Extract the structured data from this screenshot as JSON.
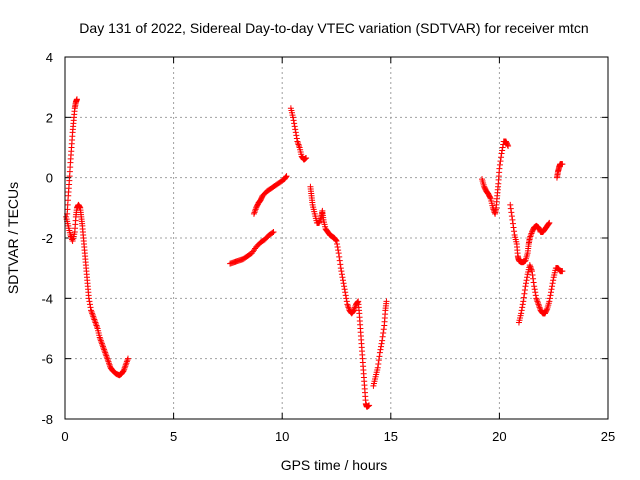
{
  "chart_data": {
    "type": "scatter",
    "title": "Day 131 of 2022, Sidereal Day-to-day VTEC variation (SDTVAR) for receiver mtcn",
    "xlabel": "GPS time / hours",
    "ylabel": "SDTVAR / TECUs",
    "xlim": [
      0,
      25
    ],
    "ylim": [
      -8,
      4
    ],
    "xticks": [
      0,
      5,
      10,
      15,
      20,
      25
    ],
    "yticks": [
      -8,
      -6,
      -4,
      -2,
      0,
      2,
      4
    ],
    "grid": true,
    "marker": "+",
    "color": "#ff0000",
    "series": [
      {
        "segments": [
          [
            [
              0.1,
              -1.2
            ],
            [
              0.15,
              -0.6
            ],
            [
              0.2,
              -0.1
            ],
            [
              0.25,
              0.5
            ],
            [
              0.3,
              1.0
            ],
            [
              0.35,
              1.5
            ],
            [
              0.4,
              1.9
            ],
            [
              0.45,
              2.3
            ],
            [
              0.5,
              2.5
            ],
            [
              0.55,
              2.6
            ]
          ],
          [
            [
              0.05,
              -1.3
            ],
            [
              0.15,
              -1.6
            ],
            [
              0.25,
              -1.9
            ],
            [
              0.35,
              -2.1
            ],
            [
              0.45,
              -1.8
            ],
            [
              0.5,
              -1.3
            ],
            [
              0.55,
              -1.0
            ],
            [
              0.62,
              -0.9
            ],
            [
              0.7,
              -1.0
            ],
            [
              0.75,
              -1.3
            ],
            [
              0.8,
              -1.6
            ],
            [
              0.85,
              -2.0
            ],
            [
              0.9,
              -2.4
            ],
            [
              0.95,
              -2.8
            ],
            [
              1.0,
              -3.2
            ],
            [
              1.05,
              -3.6
            ],
            [
              1.1,
              -4.0
            ],
            [
              1.2,
              -4.4
            ],
            [
              1.3,
              -4.6
            ],
            [
              1.4,
              -4.8
            ],
            [
              1.5,
              -5.0
            ],
            [
              1.6,
              -5.3
            ],
            [
              1.7,
              -5.5
            ],
            [
              1.8,
              -5.7
            ],
            [
              1.9,
              -5.9
            ],
            [
              2.0,
              -6.1
            ],
            [
              2.1,
              -6.3
            ],
            [
              2.2,
              -6.4
            ],
            [
              2.35,
              -6.5
            ],
            [
              2.5,
              -6.55
            ],
            [
              2.6,
              -6.5
            ],
            [
              2.7,
              -6.4
            ],
            [
              2.8,
              -6.2
            ],
            [
              2.9,
              -6.0
            ]
          ],
          [
            [
              7.6,
              -2.85
            ],
            [
              7.8,
              -2.8
            ],
            [
              8.0,
              -2.75
            ],
            [
              8.2,
              -2.7
            ],
            [
              8.4,
              -2.6
            ],
            [
              8.6,
              -2.5
            ],
            [
              8.8,
              -2.3
            ],
            [
              9.0,
              -2.15
            ],
            [
              9.2,
              -2.05
            ],
            [
              9.4,
              -1.9
            ],
            [
              9.6,
              -1.8
            ]
          ],
          [
            [
              8.7,
              -1.2
            ],
            [
              8.8,
              -1.0
            ],
            [
              8.9,
              -0.85
            ],
            [
              9.0,
              -0.75
            ],
            [
              9.1,
              -0.6
            ],
            [
              9.3,
              -0.45
            ],
            [
              9.5,
              -0.35
            ],
            [
              9.7,
              -0.25
            ],
            [
              9.9,
              -0.15
            ],
            [
              10.1,
              -0.05
            ],
            [
              10.2,
              0.05
            ]
          ],
          [
            [
              10.4,
              2.3
            ],
            [
              10.5,
              2.0
            ],
            [
              10.6,
              1.6
            ],
            [
              10.7,
              1.2
            ],
            [
              10.8,
              1.0
            ],
            [
              10.9,
              0.7
            ],
            [
              11.0,
              0.6
            ],
            [
              11.1,
              0.65
            ]
          ],
          [
            [
              11.3,
              -0.3
            ],
            [
              11.35,
              -0.6
            ],
            [
              11.4,
              -0.9
            ],
            [
              11.5,
              -1.2
            ],
            [
              11.6,
              -1.5
            ],
            [
              11.7,
              -1.5
            ],
            [
              11.8,
              -1.3
            ],
            [
              11.85,
              -1.1
            ],
            [
              11.9,
              -1.4
            ],
            [
              12.0,
              -1.7
            ],
            [
              12.1,
              -1.8
            ],
            [
              12.2,
              -1.9
            ],
            [
              12.3,
              -1.95
            ],
            [
              12.4,
              -2.0
            ],
            [
              12.5,
              -2.1
            ],
            [
              12.6,
              -2.5
            ],
            [
              12.7,
              -3.0
            ],
            [
              12.8,
              -3.4
            ],
            [
              12.9,
              -3.8
            ],
            [
              13.0,
              -4.2
            ],
            [
              13.1,
              -4.4
            ],
            [
              13.2,
              -4.5
            ],
            [
              13.3,
              -4.4
            ],
            [
              13.4,
              -4.2
            ],
            [
              13.5,
              -4.1
            ],
            [
              13.55,
              -4.5
            ],
            [
              13.6,
              -5.0
            ],
            [
              13.65,
              -5.5
            ],
            [
              13.7,
              -6.0
            ],
            [
              13.75,
              -6.5
            ],
            [
              13.8,
              -7.0
            ],
            [
              13.85,
              -7.5
            ],
            [
              13.9,
              -7.6
            ],
            [
              14.0,
              -7.55
            ]
          ],
          [
            [
              14.2,
              -6.9
            ],
            [
              14.3,
              -6.6
            ],
            [
              14.4,
              -6.3
            ],
            [
              14.5,
              -5.8
            ],
            [
              14.6,
              -5.4
            ],
            [
              14.7,
              -4.9
            ],
            [
              14.75,
              -4.4
            ],
            [
              14.8,
              -4.1
            ]
          ],
          [
            [
              19.2,
              -0.05
            ],
            [
              19.3,
              -0.3
            ],
            [
              19.4,
              -0.45
            ],
            [
              19.5,
              -0.55
            ],
            [
              19.6,
              -0.7
            ],
            [
              19.7,
              -1.0
            ],
            [
              19.8,
              -1.2
            ],
            [
              19.85,
              -1.0
            ],
            [
              19.9,
              -0.6
            ],
            [
              19.95,
              -0.2
            ],
            [
              20.0,
              0.3
            ],
            [
              20.1,
              0.8
            ],
            [
              20.2,
              1.2
            ],
            [
              20.3,
              1.2
            ],
            [
              20.4,
              1.05
            ]
          ],
          [
            [
              20.5,
              -0.9
            ],
            [
              20.6,
              -1.4
            ],
            [
              20.7,
              -1.9
            ],
            [
              20.8,
              -2.2
            ],
            [
              20.85,
              -2.6
            ],
            [
              20.9,
              -2.75
            ],
            [
              21.0,
              -2.8
            ],
            [
              21.1,
              -2.8
            ],
            [
              21.2,
              -2.75
            ],
            [
              21.3,
              -2.5
            ],
            [
              21.35,
              -2.2
            ],
            [
              21.4,
              -2.0
            ],
            [
              21.5,
              -1.8
            ],
            [
              21.6,
              -1.65
            ],
            [
              21.7,
              -1.6
            ],
            [
              21.8,
              -1.65
            ],
            [
              21.9,
              -1.8
            ],
            [
              22.0,
              -1.8
            ],
            [
              22.1,
              -1.7
            ],
            [
              22.2,
              -1.6
            ],
            [
              22.3,
              -1.5
            ]
          ],
          [
            [
              20.9,
              -4.8
            ],
            [
              21.0,
              -4.5
            ],
            [
              21.1,
              -4.1
            ],
            [
              21.2,
              -3.6
            ],
            [
              21.3,
              -3.2
            ],
            [
              21.4,
              -2.9
            ],
            [
              21.5,
              -3.1
            ],
            [
              21.6,
              -3.6
            ],
            [
              21.7,
              -4.0
            ],
            [
              21.8,
              -4.2
            ],
            [
              21.9,
              -4.4
            ],
            [
              22.0,
              -4.5
            ],
            [
              22.1,
              -4.5
            ],
            [
              22.2,
              -4.35
            ],
            [
              22.3,
              -4.1
            ],
            [
              22.4,
              -3.7
            ],
            [
              22.5,
              -3.3
            ],
            [
              22.6,
              -3.0
            ],
            [
              22.7,
              -3.0
            ],
            [
              22.8,
              -3.1
            ],
            [
              22.9,
              -3.1
            ]
          ],
          [
            [
              22.65,
              0.0
            ],
            [
              22.7,
              0.2
            ],
            [
              22.75,
              0.35
            ],
            [
              22.8,
              0.45
            ],
            [
              22.9,
              0.45
            ]
          ]
        ]
      }
    ]
  }
}
